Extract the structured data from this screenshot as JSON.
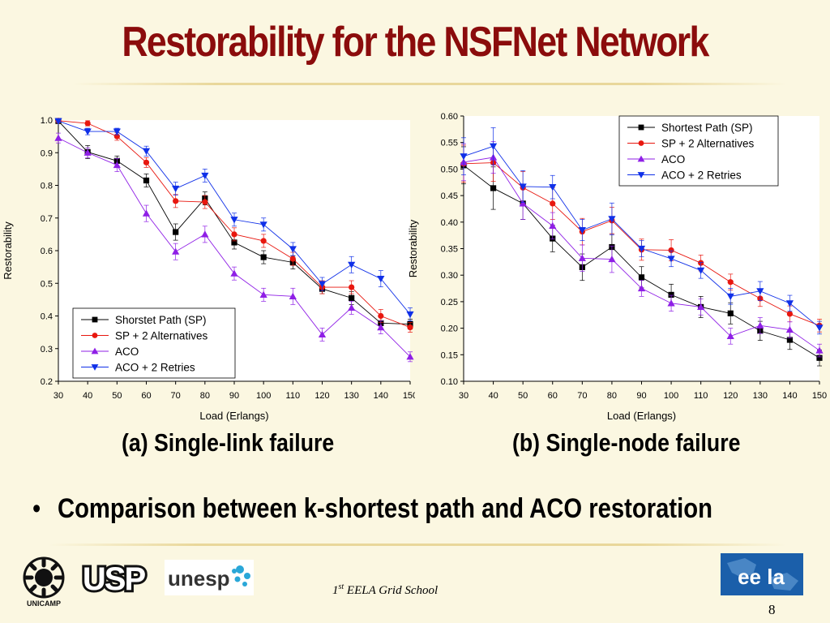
{
  "slide": {
    "title": "Restorability for the NSFNet Network",
    "caption_a": "(a) Single-link failure",
    "caption_b": "(b) Single-node failure",
    "bullet": "Comparison between k-shortest path and ACO restoration",
    "footer_pre": "1",
    "footer_sup": "st",
    "footer_post": " EELA Grid School",
    "page_number": "8",
    "logos": {
      "usp": "USP",
      "unesp": "unesp",
      "unicamp": "UNICAMP",
      "eela": "ee la"
    }
  },
  "colors": {
    "title": "#8b0c0c",
    "sp": "#000000",
    "sp2": "#e8170f",
    "aco": "#8f1fe6",
    "aco2": "#1030e8"
  },
  "chart_data": [
    {
      "type": "line",
      "xlabel": "Load (Erlangs)",
      "ylabel": "Restorability",
      "x": [
        30,
        40,
        50,
        60,
        70,
        80,
        90,
        100,
        110,
        120,
        130,
        140,
        150
      ],
      "xlim": [
        30,
        150
      ],
      "ylim": [
        0.2,
        1.0
      ],
      "yticks": [
        "0.2",
        "0.3",
        "0.4",
        "0.5",
        "0.6",
        "0.7",
        "0.8",
        "0.9",
        "1.0"
      ],
      "legend_position": "bottom-left",
      "series": [
        {
          "name": "Shorstet Path (SP)",
          "marker": "square",
          "color": "#000000",
          "values": [
            0.997,
            0.902,
            0.875,
            0.815,
            0.657,
            0.76,
            0.625,
            0.58,
            0.564,
            0.483,
            0.455,
            0.378,
            0.375
          ],
          "errors": [
            0.005,
            0.02,
            0.015,
            0.02,
            0.025,
            0.02,
            0.02,
            0.02,
            0.02,
            0.015,
            0.02,
            0.02,
            0.015
          ]
        },
        {
          "name": "SP + 2 Alternatives",
          "marker": "circle",
          "color": "#e8170f",
          "values": [
            0.998,
            0.99,
            0.95,
            0.87,
            0.752,
            0.749,
            0.65,
            0.63,
            0.575,
            0.488,
            0.488,
            0.4,
            0.365
          ],
          "errors": [
            0.004,
            0.008,
            0.012,
            0.015,
            0.02,
            0.02,
            0.02,
            0.02,
            0.02,
            0.02,
            0.02,
            0.02,
            0.015
          ]
        },
        {
          "name": "ACO",
          "marker": "triangle-up",
          "color": "#8f1fe6",
          "values": [
            0.945,
            0.9,
            0.862,
            0.714,
            0.597,
            0.65,
            0.53,
            0.465,
            0.46,
            0.343,
            0.425,
            0.365,
            0.275
          ],
          "errors": [
            0.015,
            0.015,
            0.02,
            0.025,
            0.025,
            0.025,
            0.02,
            0.02,
            0.025,
            0.02,
            0.02,
            0.02,
            0.015
          ]
        },
        {
          "name": "ACO + 2 Retries",
          "marker": "triangle-down",
          "color": "#1030e8",
          "values": [
            0.997,
            0.965,
            0.965,
            0.905,
            0.79,
            0.83,
            0.695,
            0.68,
            0.605,
            0.498,
            0.557,
            0.514,
            0.405
          ],
          "errors": [
            0.004,
            0.01,
            0.01,
            0.015,
            0.02,
            0.02,
            0.02,
            0.02,
            0.02,
            0.02,
            0.025,
            0.025,
            0.02
          ]
        }
      ]
    },
    {
      "type": "line",
      "xlabel": "Load (Erlangs)",
      "ylabel": "Restorability",
      "x": [
        30,
        40,
        50,
        60,
        70,
        80,
        90,
        100,
        110,
        120,
        130,
        140,
        150
      ],
      "xlim": [
        30,
        150
      ],
      "ylim": [
        0.1,
        0.6
      ],
      "yticks": [
        "0.10",
        "0.15",
        "0.20",
        "0.25",
        "0.30",
        "0.35",
        "0.40",
        "0.45",
        "0.50",
        "0.55",
        "0.60"
      ],
      "legend_position": "top-right",
      "series": [
        {
          "name": "Shortest Path (SP)",
          "marker": "square",
          "color": "#000000",
          "values": [
            0.507,
            0.464,
            0.435,
            0.369,
            0.315,
            0.353,
            0.296,
            0.263,
            0.24,
            0.228,
            0.195,
            0.178,
            0.144
          ],
          "errors": [
            0.035,
            0.04,
            0.03,
            0.025,
            0.025,
            0.025,
            0.02,
            0.02,
            0.02,
            0.02,
            0.018,
            0.018,
            0.015
          ]
        },
        {
          "name": "SP + 2 Alternatives",
          "marker": "circle",
          "color": "#e8170f",
          "values": [
            0.51,
            0.512,
            0.465,
            0.435,
            0.382,
            0.403,
            0.348,
            0.347,
            0.323,
            0.287,
            0.256,
            0.227,
            0.205
          ],
          "errors": [
            0.035,
            0.035,
            0.03,
            0.03,
            0.025,
            0.025,
            0.02,
            0.02,
            0.015,
            0.015,
            0.015,
            0.015,
            0.012
          ]
        },
        {
          "name": "ACO",
          "marker": "triangle-up",
          "color": "#8f1fe6",
          "values": [
            0.513,
            0.522,
            0.435,
            0.393,
            0.332,
            0.33,
            0.275,
            0.247,
            0.24,
            0.185,
            0.205,
            0.197,
            0.158
          ],
          "errors": [
            0.035,
            0.03,
            0.03,
            0.025,
            0.025,
            0.025,
            0.015,
            0.015,
            0.015,
            0.015,
            0.015,
            0.015,
            0.012
          ]
        },
        {
          "name": "ACO + 2 Retries",
          "marker": "triangle-down",
          "color": "#1030e8",
          "values": [
            0.524,
            0.543,
            0.467,
            0.466,
            0.385,
            0.406,
            0.35,
            0.331,
            0.309,
            0.26,
            0.27,
            0.247,
            0.201
          ],
          "errors": [
            0.035,
            0.035,
            0.03,
            0.022,
            0.02,
            0.03,
            0.015,
            0.015,
            0.015,
            0.015,
            0.018,
            0.015,
            0.012
          ]
        }
      ]
    }
  ]
}
